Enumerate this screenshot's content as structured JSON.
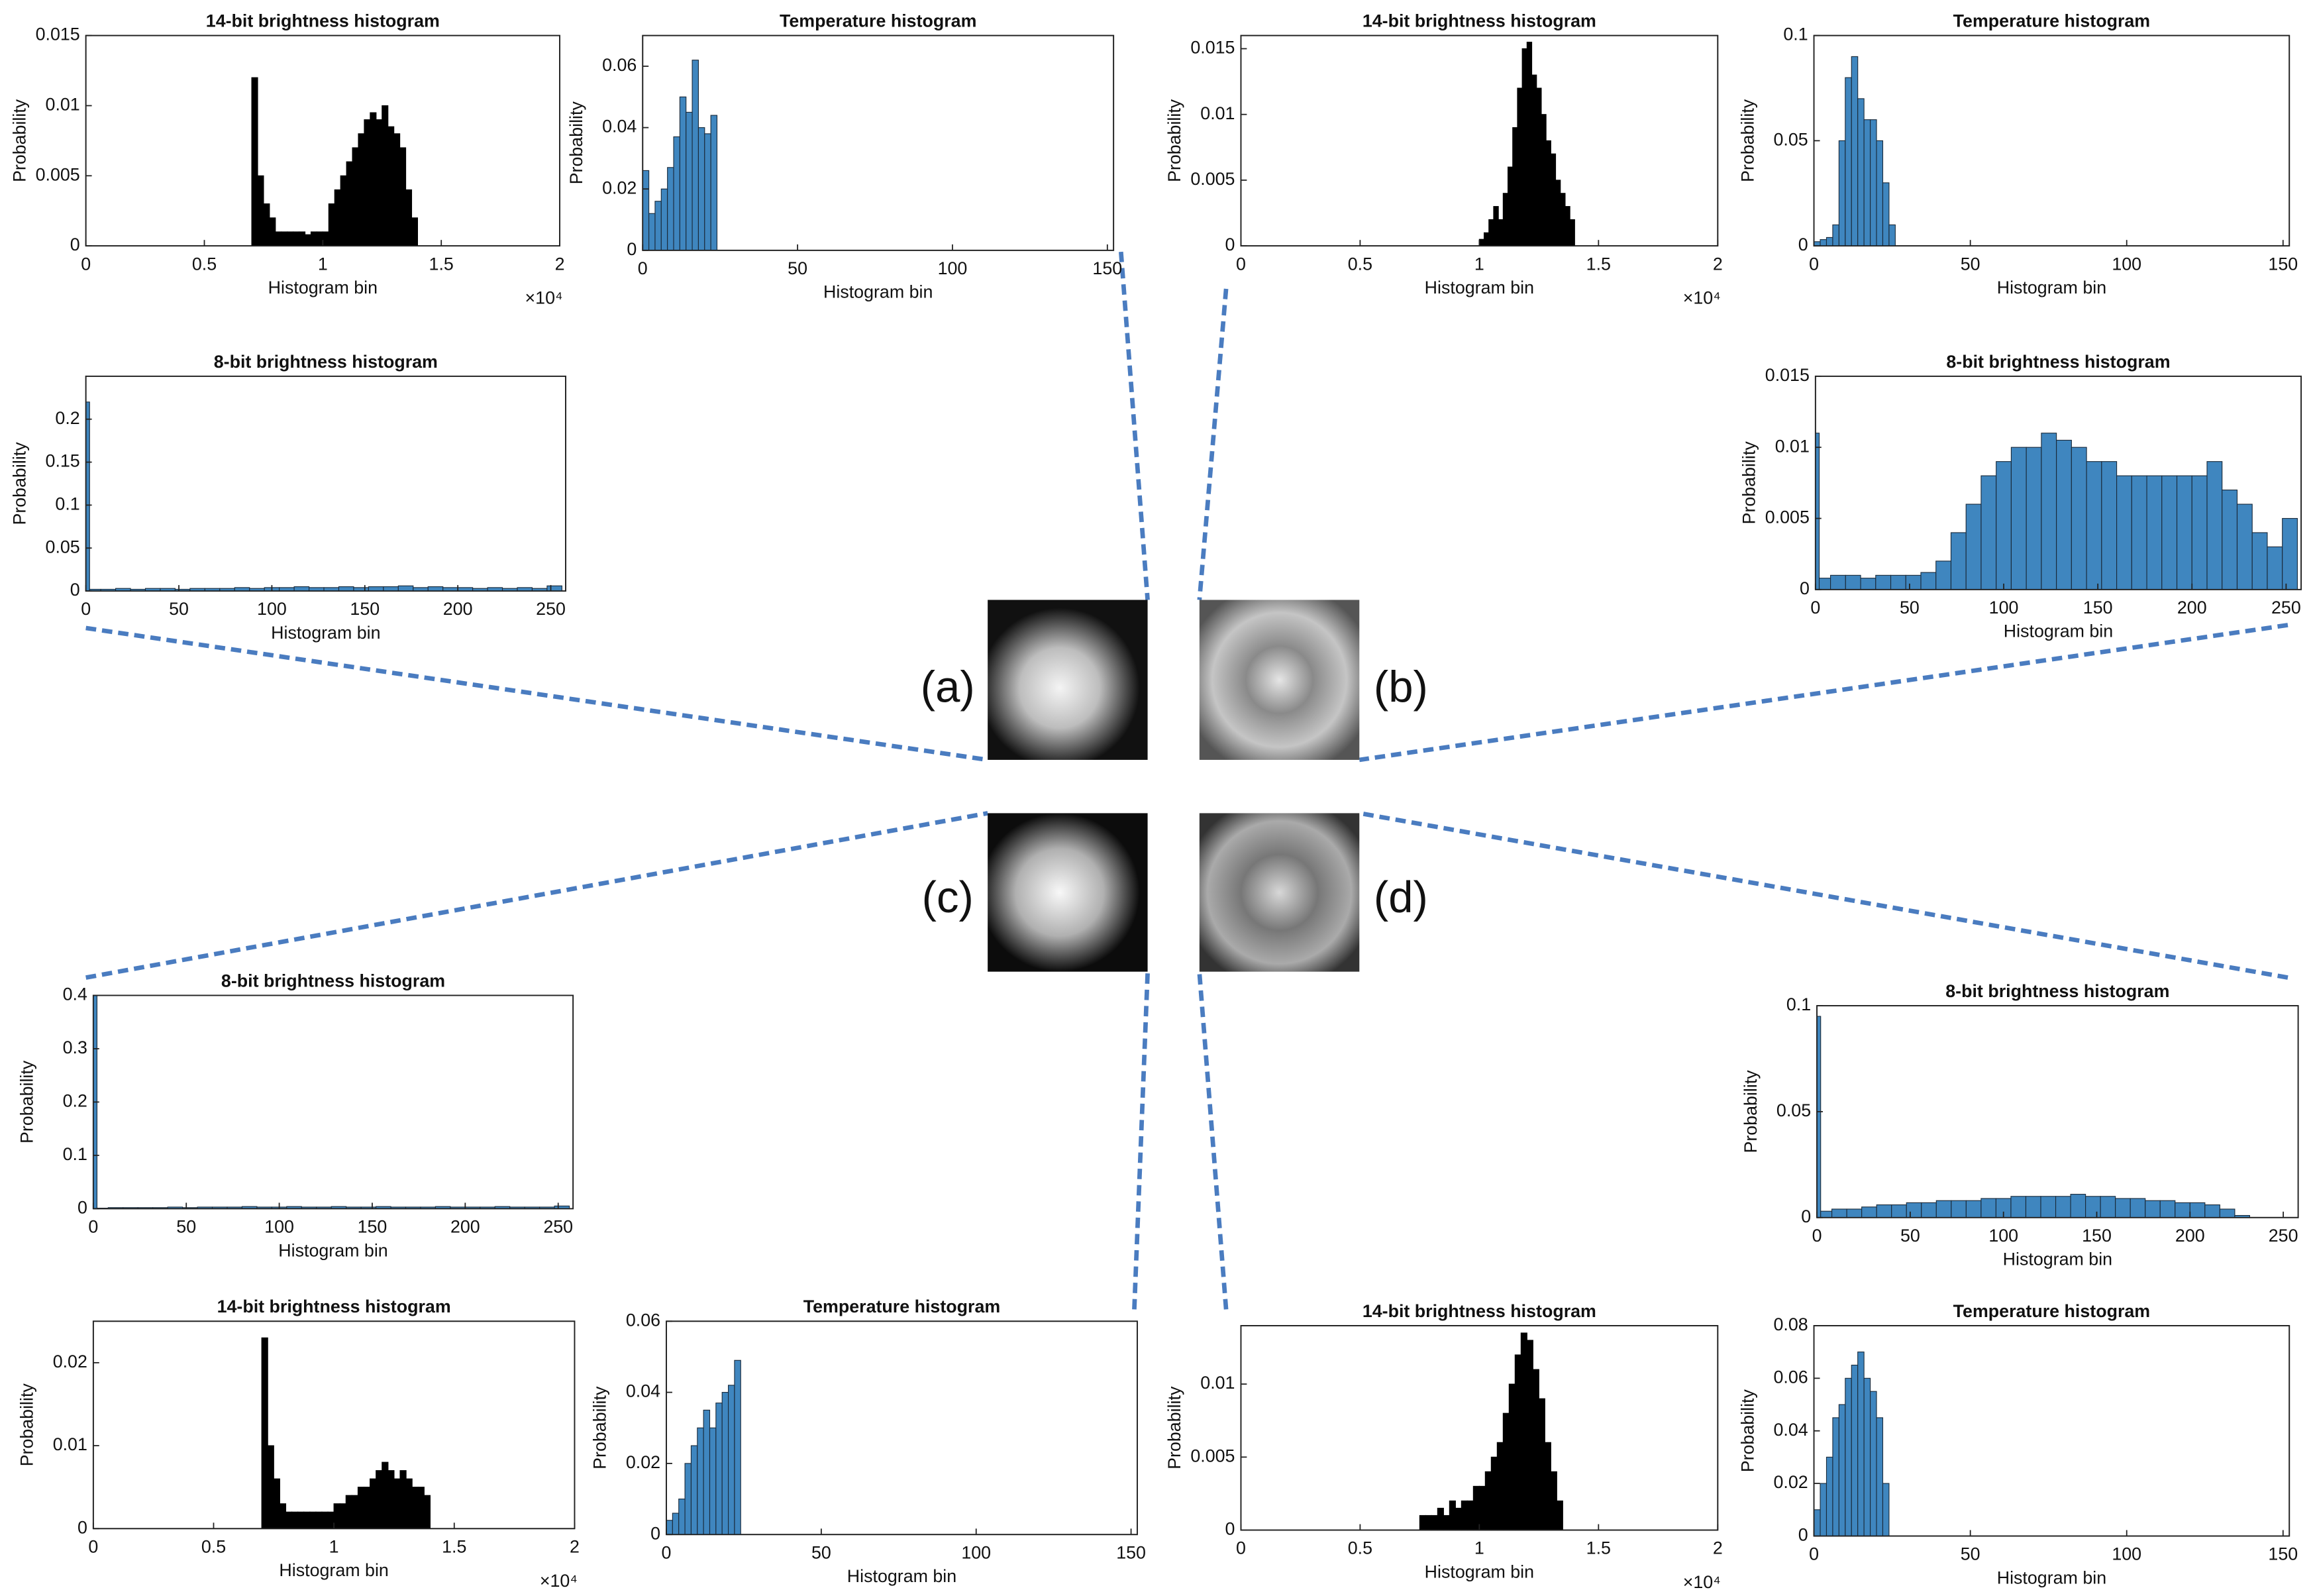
{
  "images": [
    "(a)",
    "(b)",
    "(c)",
    "(d)"
  ],
  "chart_data": [
    {
      "type": "histogram",
      "title": "14-bit brightness histogram",
      "xlabel": "Histogram bin",
      "ylabel": "Probability",
      "x_multiplier": "×10⁴",
      "color": "#000000",
      "edgecolor": "#000000",
      "bins": [
        7000,
        7250,
        7500,
        7750,
        8000,
        8250,
        8500,
        8750,
        9000,
        9250,
        9500,
        9750,
        10000,
        10250,
        10500,
        10750,
        11000,
        11250,
        11500,
        11750,
        12000,
        12250,
        12500,
        12750,
        13000,
        13250,
        13500,
        13750,
        14000
      ],
      "values": [
        0.012,
        0.005,
        0.003,
        0.002,
        0.001,
        0.001,
        0.001,
        0.001,
        0.001,
        0.0008,
        0.001,
        0.001,
        0.001,
        0.003,
        0.004,
        0.005,
        0.006,
        0.007,
        0.008,
        0.009,
        0.0095,
        0.009,
        0.01,
        0.0085,
        0.008,
        0.007,
        0.004,
        0.002
      ],
      "xlim": [
        0,
        20000
      ],
      "xticks": [
        0,
        {
          "value": 5000,
          "label": "0.5"
        },
        {
          "value": 10000,
          "label": "1"
        },
        {
          "value": 15000,
          "label": "1.5"
        },
        {
          "value": 20000,
          "label": "2"
        }
      ],
      "ylim": [
        0,
        0.015
      ],
      "yticks": [
        0,
        0.005,
        0.01,
        0.015
      ]
    },
    {
      "type": "histogram",
      "title": "Temperature histogram",
      "xlabel": "Histogram bin",
      "ylabel": "Probability",
      "color": "#3f86bf",
      "edgecolor": "#1a2a3a",
      "bins": [
        0,
        2,
        4,
        6,
        8,
        10,
        12,
        14,
        16,
        18,
        20,
        22,
        24
      ],
      "values": [
        0.026,
        0.012,
        0.016,
        0.02,
        0.027,
        0.037,
        0.05,
        0.045,
        0.062,
        0.04,
        0.038,
        0.044
      ],
      "xlim": [
        0,
        152
      ],
      "xticks": [
        0,
        50,
        100,
        150
      ],
      "ylim": [
        0,
        0.07
      ],
      "yticks": [
        0,
        0.02,
        0.04,
        0.06
      ]
    },
    {
      "type": "histogram",
      "title": "8-bit brightness histogram",
      "xlabel": "Histogram bin",
      "ylabel": "Probability",
      "color": "#3f86bf",
      "edgecolor": "#1a2a3a",
      "bins": [
        0,
        2,
        8,
        16,
        24,
        32,
        40,
        48,
        56,
        64,
        72,
        80,
        88,
        96,
        104,
        112,
        120,
        128,
        136,
        144,
        152,
        160,
        168,
        176,
        184,
        192,
        200,
        208,
        216,
        224,
        232,
        240,
        248,
        256
      ],
      "values": [
        0.22,
        0.002,
        0.002,
        0.003,
        0.002,
        0.003,
        0.003,
        0.002,
        0.003,
        0.003,
        0.003,
        0.004,
        0.003,
        0.004,
        0.004,
        0.005,
        0.004,
        0.004,
        0.005,
        0.004,
        0.005,
        0.005,
        0.006,
        0.004,
        0.005,
        0.004,
        0.004,
        0.003,
        0.004,
        0.003,
        0.004,
        0.003,
        0.006
      ],
      "xlim": [
        0,
        258
      ],
      "xticks": [
        0,
        50,
        100,
        150,
        200,
        250
      ],
      "ylim": [
        0,
        0.25
      ],
      "yticks": [
        0,
        0.05,
        0.1,
        0.15,
        0.2
      ]
    },
    {
      "type": "histogram",
      "title": "14-bit brightness histogram",
      "xlabel": "Histogram bin",
      "ylabel": "Probability",
      "x_multiplier": "×10⁴",
      "color": "#000000",
      "edgecolor": "#000000",
      "bins": [
        10000,
        10200,
        10400,
        10600,
        10800,
        11000,
        11200,
        11400,
        11600,
        11800,
        12000,
        12200,
        12400,
        12600,
        12800,
        13000,
        13200,
        13400,
        13600,
        13800,
        14000
      ],
      "values": [
        0.0005,
        0.001,
        0.002,
        0.003,
        0.002,
        0.004,
        0.006,
        0.009,
        0.012,
        0.015,
        0.0155,
        0.013,
        0.012,
        0.01,
        0.008,
        0.007,
        0.005,
        0.004,
        0.003,
        0.002
      ],
      "xlim": [
        0,
        20000
      ],
      "xticks": [
        0,
        {
          "value": 5000,
          "label": "0.5"
        },
        {
          "value": 10000,
          "label": "1"
        },
        {
          "value": 15000,
          "label": "1.5"
        },
        {
          "value": 20000,
          "label": "2"
        }
      ],
      "ylim": [
        0,
        0.016
      ],
      "yticks": [
        0,
        0.005,
        0.01,
        0.015
      ]
    },
    {
      "type": "histogram",
      "title": "Temperature histogram",
      "xlabel": "Histogram bin",
      "ylabel": "Probability",
      "color": "#3f86bf",
      "edgecolor": "#1a2a3a",
      "bins": [
        0,
        2,
        4,
        6,
        8,
        10,
        12,
        14,
        16,
        18,
        20,
        22,
        24,
        26
      ],
      "values": [
        0.002,
        0.003,
        0.004,
        0.01,
        0.05,
        0.08,
        0.09,
        0.07,
        0.06,
        0.06,
        0.05,
        0.03,
        0.01
      ],
      "xlim": [
        0,
        152
      ],
      "xticks": [
        0,
        50,
        100,
        150
      ],
      "ylim": [
        0,
        0.1
      ],
      "yticks": [
        0,
        0.05,
        0.1
      ]
    },
    {
      "type": "histogram",
      "title": "8-bit brightness histogram",
      "xlabel": "Histogram bin",
      "ylabel": "Probability",
      "color": "#3f86bf",
      "edgecolor": "#1a2a3a",
      "bins": [
        0,
        2,
        8,
        16,
        24,
        32,
        40,
        48,
        56,
        64,
        72,
        80,
        88,
        96,
        104,
        112,
        120,
        128,
        136,
        144,
        152,
        160,
        168,
        176,
        184,
        192,
        200,
        208,
        216,
        224,
        232,
        240,
        248,
        256
      ],
      "values": [
        0.011,
        0.0008,
        0.001,
        0.001,
        0.0008,
        0.001,
        0.001,
        0.001,
        0.0012,
        0.002,
        0.004,
        0.006,
        0.008,
        0.009,
        0.01,
        0.01,
        0.011,
        0.0105,
        0.01,
        0.009,
        0.009,
        0.008,
        0.008,
        0.008,
        0.008,
        0.008,
        0.008,
        0.009,
        0.007,
        0.006,
        0.004,
        0.003,
        0.005
      ],
      "xlim": [
        0,
        258
      ],
      "xticks": [
        0,
        50,
        100,
        150,
        200,
        250
      ],
      "ylim": [
        0,
        0.015
      ],
      "yticks": [
        0,
        0.005,
        0.01,
        0.015
      ]
    },
    {
      "type": "histogram",
      "title": "8-bit brightness histogram",
      "xlabel": "Histogram bin",
      "ylabel": "Probability",
      "color": "#3f86bf",
      "edgecolor": "#1a2a3a",
      "bins": [
        0,
        2,
        8,
        16,
        24,
        32,
        40,
        48,
        56,
        64,
        72,
        80,
        88,
        96,
        104,
        112,
        120,
        128,
        136,
        144,
        152,
        160,
        168,
        176,
        184,
        192,
        200,
        208,
        216,
        224,
        232,
        240,
        248,
        256
      ],
      "values": [
        0.4,
        0.001,
        0.002,
        0.002,
        0.002,
        0.002,
        0.003,
        0.002,
        0.003,
        0.003,
        0.003,
        0.004,
        0.003,
        0.003,
        0.004,
        0.003,
        0.003,
        0.004,
        0.003,
        0.003,
        0.004,
        0.003,
        0.003,
        0.003,
        0.004,
        0.003,
        0.003,
        0.003,
        0.004,
        0.003,
        0.003,
        0.003,
        0.005
      ],
      "xlim": [
        0,
        258
      ],
      "xticks": [
        0,
        50,
        100,
        150,
        200,
        250
      ],
      "ylim": [
        0,
        0.4
      ],
      "yticks": [
        0,
        0.1,
        0.2,
        0.3,
        0.4
      ]
    },
    {
      "type": "histogram",
      "title": "14-bit brightness histogram",
      "xlabel": "Histogram bin",
      "ylabel": "Probability",
      "x_multiplier": "×10⁴",
      "color": "#000000",
      "edgecolor": "#000000",
      "bins": [
        7000,
        7250,
        7500,
        7750,
        8000,
        8250,
        8500,
        8750,
        9000,
        9250,
        9500,
        9750,
        10000,
        10250,
        10500,
        10750,
        11000,
        11250,
        11500,
        11750,
        12000,
        12250,
        12500,
        12750,
        13000,
        13250,
        13500,
        13750,
        14000
      ],
      "values": [
        0.023,
        0.01,
        0.006,
        0.003,
        0.002,
        0.002,
        0.002,
        0.002,
        0.002,
        0.002,
        0.002,
        0.002,
        0.003,
        0.003,
        0.004,
        0.004,
        0.005,
        0.005,
        0.006,
        0.007,
        0.008,
        0.007,
        0.006,
        0.007,
        0.006,
        0.005,
        0.005,
        0.004
      ],
      "xlim": [
        0,
        20000
      ],
      "xticks": [
        0,
        {
          "value": 5000,
          "label": "0.5"
        },
        {
          "value": 10000,
          "label": "1"
        },
        {
          "value": 15000,
          "label": "1.5"
        },
        {
          "value": 20000,
          "label": "2"
        }
      ],
      "ylim": [
        0,
        0.025
      ],
      "yticks": [
        0,
        0.01,
        0.02
      ]
    },
    {
      "type": "histogram",
      "title": "Temperature histogram",
      "xlabel": "Histogram bin",
      "ylabel": "Probability",
      "color": "#3f86bf",
      "edgecolor": "#1a2a3a",
      "bins": [
        0,
        2,
        4,
        6,
        8,
        10,
        12,
        14,
        16,
        18,
        20,
        22,
        24
      ],
      "values": [
        0.004,
        0.006,
        0.01,
        0.02,
        0.025,
        0.03,
        0.035,
        0.03,
        0.037,
        0.04,
        0.042,
        0.049
      ],
      "xlim": [
        0,
        152
      ],
      "xticks": [
        0,
        50,
        100,
        150
      ],
      "ylim": [
        0,
        0.06
      ],
      "yticks": [
        0,
        0.02,
        0.04,
        0.06
      ]
    },
    {
      "type": "histogram",
      "title": "14-bit brightness histogram",
      "xlabel": "Histogram bin",
      "ylabel": "Probability",
      "x_multiplier": "×10⁴",
      "color": "#000000",
      "edgecolor": "#000000",
      "bins": [
        7500,
        7750,
        8000,
        8250,
        8500,
        8750,
        9000,
        9250,
        9500,
        9750,
        10000,
        10250,
        10500,
        10750,
        11000,
        11250,
        11500,
        11750,
        12000,
        12250,
        12500,
        12750,
        13000,
        13250,
        13500
      ],
      "values": [
        0.001,
        0.001,
        0.001,
        0.0015,
        0.001,
        0.002,
        0.0015,
        0.002,
        0.002,
        0.003,
        0.003,
        0.004,
        0.005,
        0.006,
        0.008,
        0.01,
        0.012,
        0.0135,
        0.013,
        0.011,
        0.009,
        0.006,
        0.004,
        0.002
      ],
      "xlim": [
        0,
        20000
      ],
      "xticks": [
        0,
        {
          "value": 5000,
          "label": "0.5"
        },
        {
          "value": 10000,
          "label": "1"
        },
        {
          "value": 15000,
          "label": "1.5"
        },
        {
          "value": 20000,
          "label": "2"
        }
      ],
      "ylim": [
        0,
        0.014
      ],
      "yticks": [
        0,
        0.005,
        0.01
      ]
    },
    {
      "type": "histogram",
      "title": "8-bit brightness histogram",
      "xlabel": "Histogram bin",
      "ylabel": "Probability",
      "color": "#3f86bf",
      "edgecolor": "#1a2a3a",
      "bins": [
        0,
        2,
        8,
        16,
        24,
        32,
        40,
        48,
        56,
        64,
        72,
        80,
        88,
        96,
        104,
        112,
        120,
        128,
        136,
        144,
        152,
        160,
        168,
        176,
        184,
        192,
        200,
        208,
        216,
        224,
        232,
        240,
        248,
        256
      ],
      "values": [
        0.095,
        0.003,
        0.004,
        0.004,
        0.005,
        0.006,
        0.006,
        0.007,
        0.007,
        0.008,
        0.008,
        0.008,
        0.009,
        0.009,
        0.01,
        0.01,
        0.01,
        0.01,
        0.011,
        0.01,
        0.01,
        0.009,
        0.009,
        0.008,
        0.008,
        0.007,
        0.007,
        0.006,
        0.004,
        0.001,
        0,
        0,
        0
      ],
      "xlim": [
        0,
        258
      ],
      "xticks": [
        0,
        50,
        100,
        150,
        200,
        250
      ],
      "ylim": [
        0,
        0.1
      ],
      "yticks": [
        0,
        0.05,
        0.1
      ]
    },
    {
      "type": "histogram",
      "title": "Temperature histogram",
      "xlabel": "Histogram bin",
      "ylabel": "Probability",
      "color": "#3f86bf",
      "edgecolor": "#1a2a3a",
      "bins": [
        0,
        2,
        4,
        6,
        8,
        10,
        12,
        14,
        16,
        18,
        20,
        22,
        24
      ],
      "values": [
        0.01,
        0.02,
        0.03,
        0.045,
        0.05,
        0.06,
        0.065,
        0.07,
        0.06,
        0.055,
        0.045,
        0.02
      ],
      "xlim": [
        0,
        152
      ],
      "xticks": [
        0,
        50,
        100,
        150
      ],
      "ylim": [
        0,
        0.08
      ],
      "yticks": [
        0,
        0.02,
        0.04,
        0.06,
        0.08
      ]
    }
  ]
}
